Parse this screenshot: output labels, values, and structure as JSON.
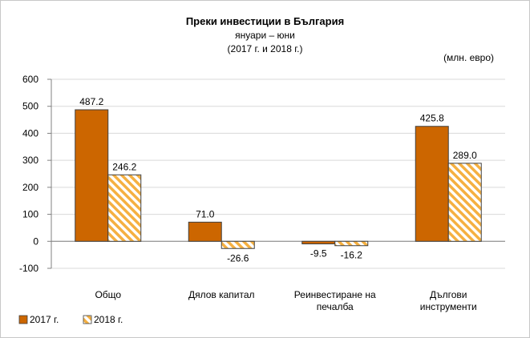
{
  "chart_data": {
    "type": "bar",
    "title": "Преки  инвестиции в България",
    "subtitle": "януари – юни",
    "period": "(2017 г. и 2018 г.)",
    "unit": "(млн. евро)",
    "categories": [
      [
        "Общо"
      ],
      [
        "Дялов капитал"
      ],
      [
        "Реинвестиране на",
        "печалба"
      ],
      [
        "Дългови",
        "инструменти"
      ]
    ],
    "series": [
      {
        "name": "2017 г.",
        "values": [
          487.2,
          71.0,
          -9.5,
          425.8
        ],
        "labels": [
          "487.2",
          "71.0",
          "-9.5",
          "425.8"
        ],
        "color": "#cc6600",
        "pattern": "solid"
      },
      {
        "name": "2018 г.",
        "values": [
          246.2,
          -26.6,
          -16.2,
          289.0
        ],
        "labels": [
          "246.2",
          "-26.6",
          "-16.2",
          "289.0"
        ],
        "color": "#f5b041",
        "pattern": "hatched"
      }
    ],
    "ylim": [
      -100,
      600
    ],
    "yticks": [
      600,
      500,
      400,
      300,
      200,
      100,
      0,
      -100
    ],
    "grid": true,
    "legend": "bottom-left"
  }
}
